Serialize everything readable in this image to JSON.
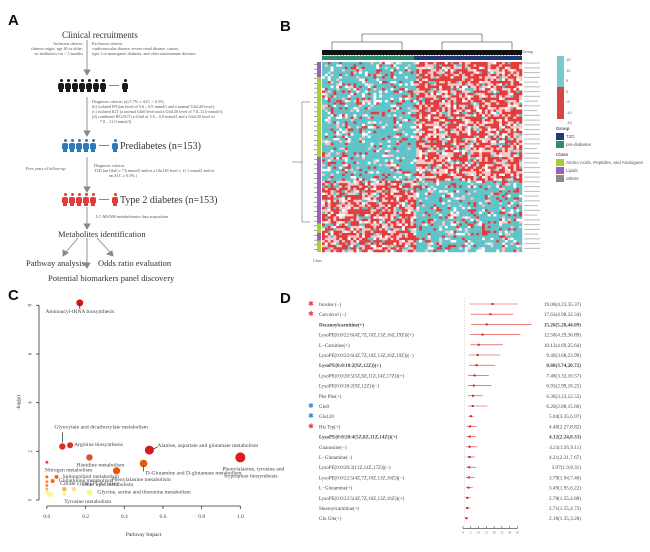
{
  "panels": {
    "A": "A",
    "B": "B",
    "C": "C",
    "D": "D"
  },
  "flowchart": {
    "title": "Clinical recruitments",
    "inclusion": [
      "Inclusion criteria:",
      "chinese origin, age 40 or older;",
      "no antibiotics for > 3 months"
    ],
    "exclusion": [
      "Exclusion criteria:",
      "cardiovascular disease, severe renal disease, cancer,",
      "type 1 or monogenic diabetes, and other autoimmune diseases"
    ],
    "diagnosis_prediabetes": [
      "Diagnosis criteria:  (a) 5.7% ≤ A1C < 6.5%;",
      "(b) isolated IFG(an level of 5.6 – 6.9 mmol/l and a normal Glu120 level);",
      "(c) isolated IGT (a normal Glu0 level and a Glu120 level of 7.8–11.0 mmol/l);",
      "(d) combined IFG/IGT (a Glu0 of 5.6 – 6.9 mmol/l and a Glu120 level of",
      "7.8 – 11.0 mmol/l)"
    ],
    "prediabetes_label": "Prediabetes (n=153)",
    "followup": "Five years of follow-up",
    "diagnosis_t2d": [
      "Diagnosis criteria:",
      "T2D (an Glu0 ≥ 7.0 mmol/l and/or a Glu120 level ≥ 11.1 mmol/l and/or",
      "an A1C ≥ 6.5% )"
    ],
    "t2d_label": "Type 2 diabetes (n=153)",
    "acquisition": "LC-MS/MS metabolomics data acquisition",
    "identification": "Metabolites identification",
    "pathway": "Pathway analysis",
    "odds": "Odds ratio evaluation",
    "discovery": "Potential biomarkers panel discovery",
    "colors": {
      "healthy": "#1a1a1a",
      "prediabetes": "#2f79b5",
      "t2d": "#e03c3c"
    }
  },
  "heatmap": {
    "group_header": "Group",
    "class_label": "Class",
    "colorscale_ticks": [
      "15",
      "10",
      "5",
      "0",
      "-5",
      "-10",
      "-15"
    ],
    "group_legend_title": "Group",
    "group_legend": [
      {
        "label": "T2D",
        "color": "#233a7a"
      },
      {
        "label": "pre-diabetes",
        "color": "#2e8b6e"
      }
    ],
    "class_legend_title": "Class",
    "class_legend": [
      {
        "label": "Amino Acids, Peptides, and Analogues",
        "color": "#a6ce39"
      },
      {
        "label": "Lipids",
        "color": "#9b5fb5"
      },
      {
        "label": "others",
        "color": "#8a8a8a"
      }
    ],
    "colors": {
      "high": "#e33b3b",
      "mid": "#f3c9c9",
      "low": "#5fc4c9"
    }
  },
  "chart_data": [
    {
      "type": "scatter",
      "panel": "C",
      "xlabel": "Pathway Impact",
      "ylabel": "-log(p)",
      "xlim": [
        -0.02,
        1.05
      ],
      "ylim": [
        0,
        8.3
      ],
      "xticks": [
        "0.0",
        "0.2",
        "0.4",
        "0.6",
        "0.8",
        "1.0"
      ],
      "yticks": [
        "0",
        "2",
        "4",
        "6",
        "8"
      ],
      "points": [
        {
          "label": "Aminoacyl-tRNA biosynthesis",
          "x": 0.17,
          "y": 8.1,
          "size": 3.5,
          "color": "#d7191c"
        },
        {
          "label": "Glyoxylate and dicarboxylate metabolism",
          "x": 0.08,
          "y": 2.2,
          "size": 3.2,
          "color": "#d7301f"
        },
        {
          "label": "Arginine biosynthesis",
          "x": 0.12,
          "y": 2.25,
          "size": 3,
          "color": "#d7301f"
        },
        {
          "label": "Alanine, aspartate and glutamate metabolism",
          "x": 0.53,
          "y": 2.05,
          "size": 4.5,
          "color": "#d7191c"
        },
        {
          "label": "Histidine metabolism",
          "x": 0.22,
          "y": 1.75,
          "size": 3.2,
          "color": "#e34a33"
        },
        {
          "label": "Phenylalanine, tyrosine and tryptophan biosynthesis",
          "x": 1.0,
          "y": 1.75,
          "size": 5,
          "color": "#e31a1c"
        },
        {
          "label": "Nitrogen metabolism",
          "x": 0.0,
          "y": 1.55,
          "size": 1.5,
          "color": "#e34a33"
        },
        {
          "label": "D-Glutamine and D-glutamate metabolism",
          "x": 0.5,
          "y": 1.5,
          "size": 3.8,
          "color": "#e6550d"
        },
        {
          "label": "Phenylalanine metabolism",
          "x": 0.36,
          "y": 1.2,
          "size": 3.6,
          "color": "#e6550d"
        },
        {
          "label": "Sphingolipid metabolism",
          "x": 0.05,
          "y": 0.95,
          "size": 2,
          "color": "#f16913"
        },
        {
          "label": "Glutathione metabolism",
          "x": 0.03,
          "y": 0.78,
          "size": 2,
          "color": "#f16913"
        },
        {
          "label": "Citrate cycle (TCA cycle)",
          "x": 0.09,
          "y": 0.45,
          "size": 2.2,
          "color": "#fdae61"
        },
        {
          "label": "Ether lipid metabolism",
          "x": 0.14,
          "y": 0.45,
          "size": 2.2,
          "color": "#fee08b"
        },
        {
          "label": "Glycine, serine and threonine metabolism",
          "x": 0.22,
          "y": 0.3,
          "size": 2.8,
          "color": "#f7f78a"
        },
        {
          "label": "Tyrosine metabolism",
          "x": 0.09,
          "y": 0.25,
          "size": 2,
          "color": "#f7f7a0"
        },
        {
          "label": "",
          "x": 0.0,
          "y": 0.95,
          "size": 1.5,
          "color": "#f16913"
        },
        {
          "label": "",
          "x": 0.0,
          "y": 0.75,
          "size": 1.5,
          "color": "#fd8d3c"
        },
        {
          "label": "",
          "x": 0.0,
          "y": 0.6,
          "size": 1.5,
          "color": "#fd8d3c"
        },
        {
          "label": "",
          "x": 0.0,
          "y": 0.45,
          "size": 1.5,
          "color": "#fdae61"
        },
        {
          "label": "",
          "x": 0.0,
          "y": 0.35,
          "size": 1.5,
          "color": "#fee08b"
        },
        {
          "label": "",
          "x": 0.01,
          "y": 0.28,
          "size": 2.6,
          "color": "#f7f7a0"
        },
        {
          "label": "",
          "x": 0.02,
          "y": 0.22,
          "size": 2.6,
          "color": "#f7f7a0"
        }
      ]
    },
    {
      "type": "forest",
      "panel": "D",
      "xlim": [
        0,
        36
      ],
      "xticks": [
        "0",
        "5",
        "10",
        "15",
        "20",
        "25",
        "30",
        "35"
      ],
      "rows": [
        {
          "label": "Inosine (−)",
          "marker": "red-star",
          "or": 19.0,
          "lo": 4.23,
          "hi": 35.37,
          "text": "19.00(4.23,35.37)",
          "bold": false
        },
        {
          "label": "Carvacrol (−)",
          "marker": "red-star",
          "or": 17.63,
          "lo": 4.98,
          "hi": 32.34,
          "text": "17.63(4.98,32.34)",
          "bold": false
        },
        {
          "label": "Decanoylcarnitine(+)",
          "marker": "",
          "or": 15.26,
          "lo": 5.28,
          "hi": 44.09,
          "text": "15.26(5.28,44.09)",
          "bold": true
        },
        {
          "label": "LysoPE(0:0/22:6(4Z,7Z,10Z,13Z,16Z,19Z))(+)",
          "marker": "",
          "or": 12.58,
          "lo": 4.29,
          "hi": 36.89,
          "text": "12.58(4.29,36.89)",
          "bold": false
        },
        {
          "label": "L−Carnitine(+)",
          "marker": "",
          "or": 10.12,
          "lo": 4.69,
          "hi": 25.64,
          "text": "10.12(4.69,25.64)",
          "bold": false
        },
        {
          "label": "LysoPE(0:0/22:6(4Z,7Z,10Z,13Z,16Z,19Z))(−)",
          "marker": "",
          "or": 9.4,
          "lo": 3.68,
          "hi": 23.99,
          "text": "9.40(3.68,23.99)",
          "bold": false
        },
        {
          "label": "LysoPE(0:0/18:2(9Z,12Z))(+)",
          "marker": "",
          "or": 8.8,
          "lo": 3.74,
          "hi": 20.72,
          "text": "8.80(3.74,20.72)",
          "bold": true
        },
        {
          "label": "LysoPE(0:0/20:5(5Z,8Z,11Z,14Z,17Z))(+)",
          "marker": "",
          "or": 7.48,
          "lo": 3.33,
          "hi": 16.57,
          "text": "7.48(3.33,16.57)",
          "bold": false
        },
        {
          "label": "LysoPE(0:0/18:2(9Z,12Z))(−)",
          "marker": "",
          "or": 6.93,
          "lo": 2.99,
          "hi": 18.25,
          "text": "6.93(2.99,18.25)",
          "bold": false
        },
        {
          "label": "Phe Phe(+)",
          "marker": "",
          "or": 6.36,
          "lo": 3.23,
          "hi": 12.53,
          "text": "6.36(3.23,12.53)",
          "bold": false
        },
        {
          "label": "Glu0",
          "marker": "blue-star",
          "or": 6.2,
          "lo": 2.88,
          "hi": 15.66,
          "text": "6.20(2.88,15.66)",
          "bold": false
        },
        {
          "label": "Glu120",
          "marker": "blue-star",
          "or": 5.04,
          "lo": 3.35,
          "hi": 6.97,
          "text": "5.04(3.35,6.97)",
          "bold": false
        },
        {
          "label": "His Trp(+)",
          "marker": "red-star",
          "or": 4.48,
          "lo": 2.27,
          "hi": 8.82,
          "text": "4.48(2.27,8.82)",
          "bold": false
        },
        {
          "label": "LysoPE(0:0/20:4(5Z,8Z,11Z,14Z))(+)",
          "marker": "",
          "or": 4.32,
          "lo": 2.24,
          "hi": 8.33,
          "text": "4.32(2.24,8.33)",
          "bold": true
        },
        {
          "label": "Guanosine(−)",
          "marker": "",
          "or": 4.21,
          "lo": 1.95,
          "hi": 9.11,
          "text": "4.21(1.95,9.11)",
          "bold": false
        },
        {
          "label": "L−Glutamine(−)",
          "marker": "",
          "or": 4.21,
          "lo": 2.31,
          "hi": 7.67,
          "text": "4.21(2.31,7.67)",
          "bold": false
        },
        {
          "label": "LysoPE(0:0/20:3(11Z,14Z,17Z))(−)",
          "marker": "",
          "or": 3.97,
          "lo": 1.9,
          "hi": 8.31,
          "text": "3.97(1.9,8.31)",
          "bold": false
        },
        {
          "label": "LysoPE(0:0/22:5(4Z,7Z,10Z,13Z,16Z))(−)",
          "marker": "",
          "or": 3.79,
          "lo": 1.94,
          "hi": 7.4,
          "text": "3.79(1.94,7.40)",
          "bold": false
        },
        {
          "label": "L−Glutamine(+)",
          "marker": "",
          "or": 3.49,
          "lo": 1.95,
          "hi": 6.22,
          "text": "3.49(1.95,6.22)",
          "bold": false
        },
        {
          "label": "LysoPE(0:0/22:5(4Z,7Z,10Z,13Z,16Z))(+)",
          "marker": "",
          "or": 2.78,
          "lo": 1.55,
          "hi": 4.88,
          "text": "2.78(1.55,4.88)",
          "bold": false
        },
        {
          "label": "Stearoylcarnitine(+)",
          "marker": "",
          "or": 2.71,
          "lo": 1.55,
          "hi": 4.73,
          "text": "2.71(1.55,4.73)",
          "bold": false
        },
        {
          "label": "Glu Gln(+)",
          "marker": "",
          "or": 2.18,
          "lo": 1.35,
          "hi": 3.28,
          "text": "2.18(1.35,3.28)",
          "bold": false
        }
      ]
    }
  ]
}
